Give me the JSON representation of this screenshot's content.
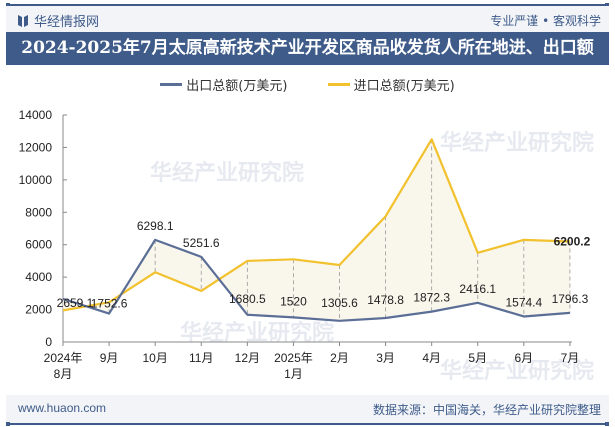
{
  "header": {
    "brand": "华经情报网",
    "slogan": "专业严谨 • 客观科学",
    "title": "2024-2025年7月太原高新技术产业开发区商品收发货人所在地进、出口额"
  },
  "legend": [
    {
      "label": "出口总额(万美元)",
      "color": "#5b6e96"
    },
    {
      "label": "进口总额(万美元)",
      "color": "#f2c12e"
    }
  ],
  "footer": {
    "url": "www.huaon.com",
    "source": "数据来源：中国海关，华经产业研究院整理"
  },
  "watermark": "华经产业研究院",
  "chart_data": {
    "type": "line",
    "title": "2024-2025年7月太原高新技术产业开发区商品收发货人所在地进、出口额",
    "categories": [
      "2024年\n8月",
      "9月",
      "10月",
      "11月",
      "12月",
      "2025年\n1月",
      "2月",
      "3月",
      "4月",
      "5月",
      "6月",
      "7月"
    ],
    "series": [
      {
        "name": "出口总额(万美元)",
        "color": "#5b6e96",
        "values": [
          2659.1,
          1752.6,
          6298.1,
          5251.6,
          1680.5,
          1520,
          1305.6,
          1478.8,
          1872.3,
          2416.1,
          1574.4,
          1796.3
        ],
        "labels": [
          "2659.1",
          "1752.6",
          "6298.1",
          "5251.6",
          "1680.5",
          "1520",
          "1305.6",
          "1478.8",
          "1872.3",
          "2416.1",
          "1574.4",
          "1796.3"
        ]
      },
      {
        "name": "进口总额(万美元)",
        "color": "#f2c12e",
        "values": [
          1950,
          2450,
          4300,
          3150,
          5000,
          5100,
          4750,
          7750,
          12500,
          5500,
          6300,
          6200.2
        ],
        "labels": [
          "",
          "",
          "",
          "",
          "",
          "",
          "",
          "",
          "",
          "",
          "",
          "6200.2"
        ]
      }
    ],
    "yticks": [
      "0",
      "2000",
      "4000",
      "6000",
      "8000",
      "10000",
      "12000",
      "14000"
    ],
    "ylim": [
      0,
      14000
    ],
    "xlabel": "",
    "ylabel": "",
    "grid": false,
    "legend_position": "top"
  }
}
